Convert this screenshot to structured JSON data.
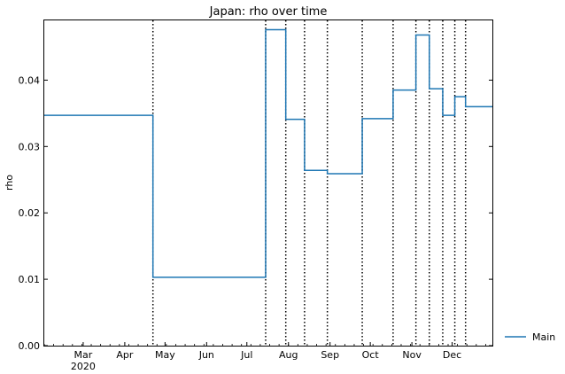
{
  "chart_data": {
    "type": "line",
    "title": "Japan: rho over time",
    "xlabel": "",
    "ylabel": "rho",
    "x_start": "2020-02-01",
    "x_end": "2020-12-31",
    "ylim": [
      0,
      0.049
    ],
    "yticks": [
      0.0,
      0.01,
      0.02,
      0.03,
      0.04
    ],
    "ytick_labels": [
      "0.00",
      "0.01",
      "0.02",
      "0.03",
      "0.04"
    ],
    "xticks": [
      {
        "date": "2020-03-01",
        "label": "Mar",
        "sublabel": "2020"
      },
      {
        "date": "2020-04-01",
        "label": "Apr",
        "sublabel": ""
      },
      {
        "date": "2020-05-01",
        "label": "May",
        "sublabel": ""
      },
      {
        "date": "2020-06-01",
        "label": "Jun",
        "sublabel": ""
      },
      {
        "date": "2020-07-01",
        "label": "Jul",
        "sublabel": ""
      },
      {
        "date": "2020-08-01",
        "label": "Aug",
        "sublabel": ""
      },
      {
        "date": "2020-09-01",
        "label": "Sep",
        "sublabel": ""
      },
      {
        "date": "2020-10-01",
        "label": "Oct",
        "sublabel": ""
      },
      {
        "date": "2020-11-01",
        "label": "Nov",
        "sublabel": ""
      },
      {
        "date": "2020-12-01",
        "label": "Dec",
        "sublabel": ""
      }
    ],
    "grid": false,
    "legend_position": "outside-bottom-right",
    "series": [
      {
        "name": "Main",
        "color": "#1f77b4",
        "step": "post",
        "points": [
          {
            "x": "2020-02-01",
            "y": 0.0347
          },
          {
            "x": "2020-04-22",
            "y": 0.0103
          },
          {
            "x": "2020-07-15",
            "y": 0.0476
          },
          {
            "x": "2020-07-30",
            "y": 0.0341
          },
          {
            "x": "2020-08-13",
            "y": 0.0264
          },
          {
            "x": "2020-08-30",
            "y": 0.0259
          },
          {
            "x": "2020-09-25",
            "y": 0.0342
          },
          {
            "x": "2020-10-18",
            "y": 0.0385
          },
          {
            "x": "2020-11-04",
            "y": 0.0468
          },
          {
            "x": "2020-11-14",
            "y": 0.0387
          },
          {
            "x": "2020-11-24",
            "y": 0.0347
          },
          {
            "x": "2020-12-03",
            "y": 0.0375
          },
          {
            "x": "2020-12-11",
            "y": 0.036
          },
          {
            "x": "2020-12-31",
            "y": 0.036
          }
        ]
      }
    ],
    "vlines": [
      "2020-04-22",
      "2020-07-15",
      "2020-07-30",
      "2020-08-13",
      "2020-08-30",
      "2020-09-25",
      "2020-10-18",
      "2020-11-04",
      "2020-11-14",
      "2020-11-24",
      "2020-12-03",
      "2020-12-11"
    ],
    "vline_color": "#000000"
  }
}
